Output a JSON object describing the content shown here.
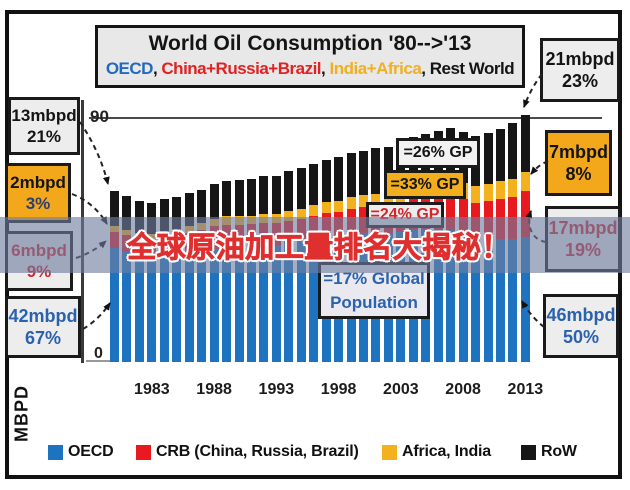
{
  "banner": {
    "text": "全球原油加工量排名大揭秘！",
    "text_color": "#e02f2f",
    "outline_color": "#ffffff"
  },
  "title": {
    "line1": "World Oil Consumption '80-->'13",
    "line2_parts": [
      {
        "text": "OECD",
        "color": "#2468c0"
      },
      {
        "text": ", ",
        "color": "#141414"
      },
      {
        "text": "China+Russia+Brazil",
        "color": "#e02222"
      },
      {
        "text": ", ",
        "color": "#141414"
      },
      {
        "text": "India+Africa",
        "color": "#f0b020"
      },
      {
        "text": ", Rest World",
        "color": "#141414"
      }
    ]
  },
  "chart_data": {
    "type": "bar",
    "stacked": true,
    "x": [
      1980,
      1981,
      1982,
      1983,
      1984,
      1985,
      1986,
      1987,
      1988,
      1989,
      1990,
      1991,
      1992,
      1993,
      1994,
      1995,
      1996,
      1997,
      1998,
      1999,
      2000,
      2001,
      2002,
      2003,
      2004,
      2005,
      2006,
      2007,
      2008,
      2009,
      2010,
      2011,
      2012,
      2013
    ],
    "x_tick_labels": [
      "1983",
      "1988",
      "1993",
      "1998",
      "2003",
      "2008",
      "2013"
    ],
    "x_tick_indices": [
      3,
      8,
      13,
      18,
      23,
      28,
      33
    ],
    "ylabel": "MBPD",
    "y_zero_label": "0",
    "y_gridline_label": "90",
    "y_gridline_value": 90,
    "ylim": [
      0,
      95
    ],
    "units": "mbpd",
    "series": [
      {
        "name": "OECD",
        "color": "#1e73c0",
        "values": [
          42.0,
          40.5,
          39.0,
          38.5,
          39.2,
          39.2,
          40.2,
          40.8,
          41.8,
          42.2,
          42.0,
          42.3,
          43.0,
          43.2,
          44.2,
          44.7,
          45.6,
          46.3,
          46.5,
          47.3,
          47.6,
          47.7,
          47.5,
          48.0,
          48.8,
          49.0,
          48.8,
          48.6,
          47.1,
          45.3,
          45.5,
          45.3,
          45.2,
          46.0
        ]
      },
      {
        "name": "CRB (China, Russia, Brazil)",
        "color": "#e8191f",
        "values": [
          6.0,
          6.2,
          6.4,
          6.6,
          6.9,
          7.2,
          7.5,
          7.8,
          8.2,
          8.5,
          8.7,
          8.5,
          8.2,
          7.9,
          7.9,
          8.1,
          8.3,
          8.6,
          8.8,
          9.1,
          9.5,
          9.8,
          10.1,
          10.6,
          11.2,
          11.8,
          12.4,
          13.0,
          13.0,
          13.5,
          14.0,
          14.8,
          15.6,
          17.0
        ]
      },
      {
        "name": "Africa, India",
        "color": "#f3b11d",
        "values": [
          2.0,
          2.1,
          2.2,
          2.3,
          2.4,
          2.5,
          2.6,
          2.7,
          2.9,
          3.0,
          3.1,
          3.2,
          3.3,
          3.4,
          3.6,
          3.7,
          3.9,
          4.0,
          4.2,
          4.3,
          4.4,
          4.6,
          4.7,
          4.9,
          5.1,
          5.3,
          5.5,
          5.7,
          5.9,
          6.1,
          6.3,
          6.5,
          6.7,
          7.0
        ]
      },
      {
        "name": "RoW",
        "color": "#161616",
        "values": [
          13.0,
          12.4,
          11.8,
          11.4,
          11.5,
          11.8,
          12.1,
          12.2,
          12.6,
          13.0,
          13.5,
          13.7,
          14.0,
          14.3,
          14.6,
          15.0,
          15.4,
          15.8,
          16.0,
          16.3,
          16.5,
          16.7,
          17.0,
          17.3,
          17.8,
          18.2,
          18.6,
          19.0,
          19.0,
          18.6,
          18.7,
          19.4,
          20.5,
          21.0
        ]
      }
    ],
    "legend": [
      "OECD",
      "CRB (China, Russia, Brazil)",
      "Africa, India",
      "RoW"
    ]
  },
  "callouts": {
    "left": [
      {
        "value": "13mbpd",
        "pct": "21%",
        "bg": "#ededed",
        "value_color": "#141414",
        "pct_color": "#141414"
      },
      {
        "value": "2mbpd",
        "pct": "3%",
        "bg": "#f3a81c",
        "value_color": "#141414",
        "pct_color": "#2c3e70"
      },
      {
        "value": "6mbpd",
        "pct": "9%",
        "bg": "#ededed",
        "value_color": "#d4252c",
        "pct_color": "#d4252c"
      },
      {
        "value": "42mbpd",
        "pct": "67%",
        "bg": "#ededed",
        "value_color": "#2a62ae",
        "pct_color": "#2a62ae"
      }
    ],
    "right": [
      {
        "value": "21mbpd",
        "pct": "23%",
        "bg": "#ededed",
        "value_color": "#141414",
        "pct_color": "#141414"
      },
      {
        "value": "7mbpd",
        "pct": "8%",
        "bg": "#f3a81c",
        "value_color": "#141414",
        "pct_color": "#141414"
      },
      {
        "value": "17mbpd",
        "pct": "19%",
        "bg": "#ededed",
        "value_color": "#d4252c",
        "pct_color": "#d4252c"
      },
      {
        "value": "46mbpd",
        "pct": "50%",
        "bg": "#ededed",
        "value_color": "#2a62ae",
        "pct_color": "#2a62ae"
      }
    ],
    "gp_notes": [
      {
        "text": "=26% GP",
        "bg": "#f2f2f2",
        "color": "#141414"
      },
      {
        "text": "=33% GP",
        "bg": "#f2ae1c",
        "color": "#141414"
      },
      {
        "text": "=24% GP",
        "bg": "#ededed",
        "color": "#d4252c"
      },
      {
        "line1": "=17% Global",
        "line2": "Population",
        "bg": "#e9e9ef",
        "color": "#2a62ae"
      }
    ]
  }
}
